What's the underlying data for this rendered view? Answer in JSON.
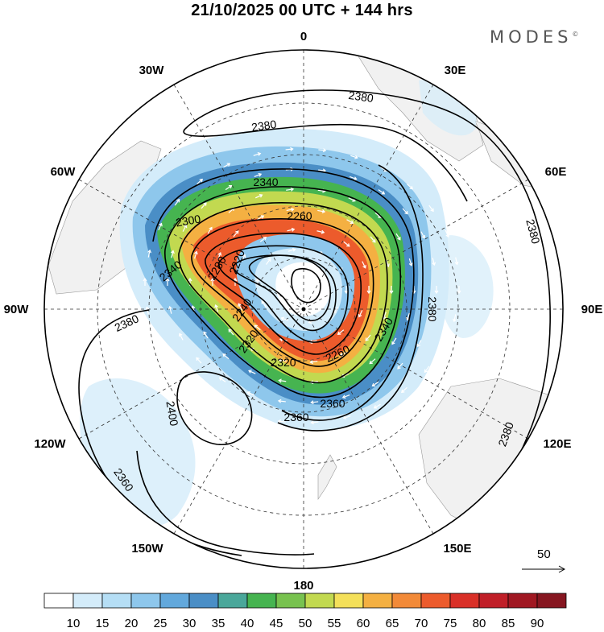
{
  "title": "21/10/2025  00 UTC  + 144 hrs",
  "brand": "MODES",
  "brand_mark": "©",
  "map": {
    "projection": "polar stereographic (southern hemisphere)",
    "longitude_labels": [
      "0",
      "30E",
      "60E",
      "90E",
      "120E",
      "150E",
      "180",
      "150W",
      "120W",
      "90W",
      "60W",
      "30W"
    ],
    "contour_labels": [
      "2380",
      "2380",
      "2340",
      "2260",
      "2300",
      "2220",
      "2340",
      "2280",
      "2240",
      "2380",
      "2380",
      "2320",
      "2260",
      "2340",
      "2380",
      "2360",
      "2380",
      "2320",
      "2360",
      "2400",
      "2360"
    ],
    "vector_reference": "50"
  },
  "colorbar": {
    "labels": [
      "10",
      "15",
      "20",
      "25",
      "30",
      "35",
      "40",
      "45",
      "50",
      "55",
      "60",
      "65",
      "70",
      "75",
      "80",
      "85",
      "90"
    ],
    "colors": [
      "#ffffff",
      "#d4ecfa",
      "#b5def5",
      "#8ec7ec",
      "#62a8dc",
      "#4a8ec6",
      "#4aa79a",
      "#46b450",
      "#78c24f",
      "#c2d950",
      "#f4e05a",
      "#f4b042",
      "#f28a38",
      "#ec5b2c",
      "#d93028",
      "#c01f28",
      "#a01822",
      "#861620"
    ]
  }
}
